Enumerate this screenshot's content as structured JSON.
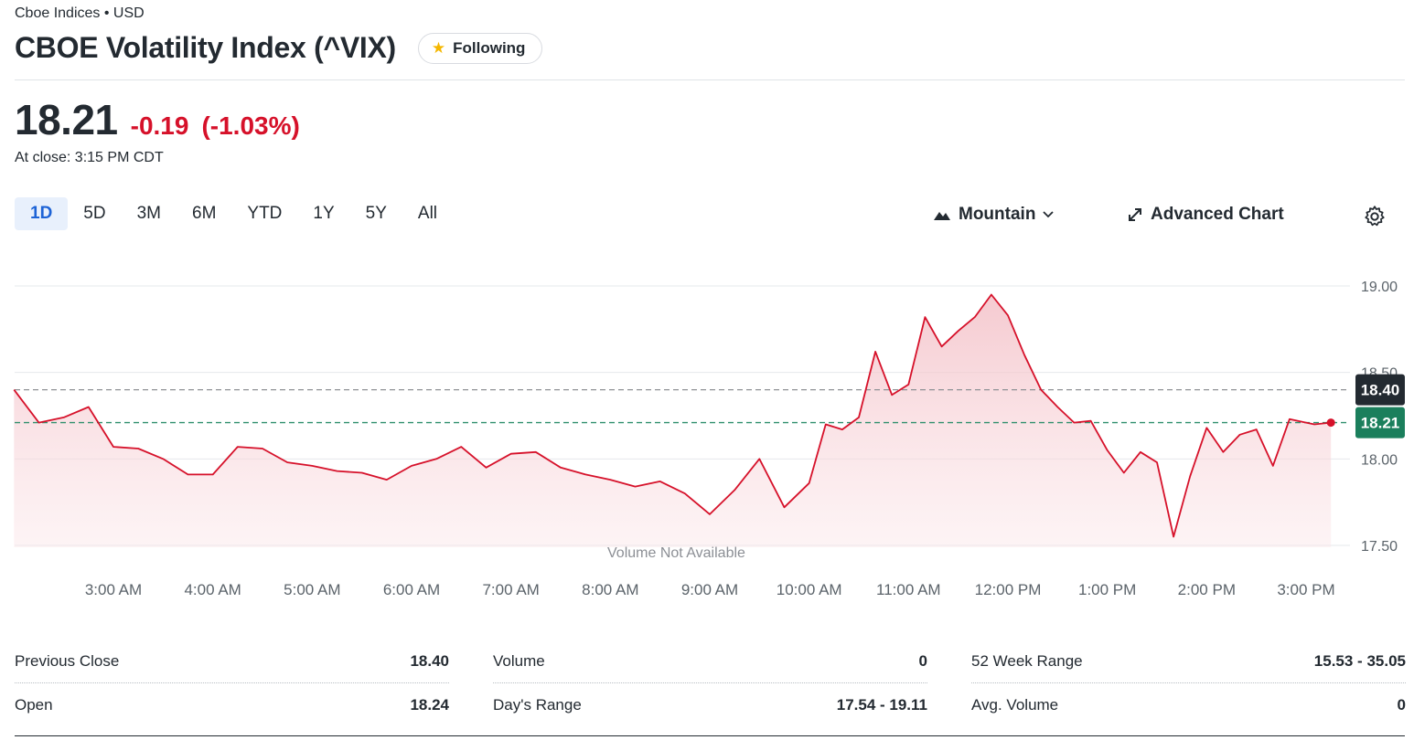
{
  "header": {
    "exchange": "Cboe Indices • USD",
    "title": "CBOE Volatility Index (^VIX)",
    "follow_label": "Following"
  },
  "quote": {
    "price": "18.21",
    "change": "-0.19",
    "change_pct": "(-1.03%)",
    "at_close": "At close: 3:15 PM CDT"
  },
  "range_tabs": [
    "1D",
    "5D",
    "3M",
    "6M",
    "YTD",
    "1Y",
    "5Y",
    "All"
  ],
  "active_range": "1D",
  "toolbar": {
    "chart_type": "Mountain",
    "advanced_chart": "Advanced Chart"
  },
  "chart_data": {
    "type": "area",
    "x_ticks": [
      "3:00 AM",
      "4:00 AM",
      "5:00 AM",
      "6:00 AM",
      "7:00 AM",
      "8:00 AM",
      "9:00 AM",
      "10:00 AM",
      "11:00 AM",
      "12:00 PM",
      "1:00 PM",
      "2:00 PM",
      "3:00 PM"
    ],
    "y_ticks": [
      "19.00",
      "18.50",
      "18.00",
      "17.50"
    ],
    "ylim": [
      17.5,
      19.0
    ],
    "previous_close_marker": "18.40",
    "last_price_marker": "18.21",
    "volume_note": "Volume Not Available",
    "series": [
      {
        "x": [
          "2:00",
          "2:15",
          "2:30",
          "2:45",
          "3:00",
          "3:15",
          "3:30",
          "3:45",
          "4:00",
          "4:15",
          "4:30",
          "4:45",
          "5:00",
          "5:15",
          "5:30",
          "5:45",
          "6:00",
          "6:15",
          "6:30",
          "6:45",
          "7:00",
          "7:15",
          "7:30",
          "7:45",
          "8:00",
          "8:15",
          "8:30",
          "8:45",
          "9:00",
          "9:15",
          "9:30",
          "9:45",
          "10:00",
          "10:10",
          "10:20",
          "10:30",
          "10:40",
          "10:50",
          "11:00",
          "11:10",
          "11:20",
          "11:30",
          "11:40",
          "11:50",
          "12:00",
          "12:10",
          "12:20",
          "12:30",
          "12:40",
          "12:50",
          "13:00",
          "13:10",
          "13:20",
          "13:30",
          "13:40",
          "13:50",
          "14:00",
          "14:10",
          "14:20",
          "14:30",
          "14:40",
          "14:50",
          "15:00",
          "15:05",
          "15:15"
        ],
        "values": [
          18.4,
          18.21,
          18.24,
          18.3,
          18.07,
          18.06,
          18.0,
          17.91,
          17.91,
          18.07,
          18.06,
          17.98,
          17.96,
          17.93,
          17.92,
          17.88,
          17.96,
          18.0,
          18.07,
          17.95,
          18.03,
          18.04,
          17.95,
          17.91,
          17.88,
          17.84,
          17.87,
          17.8,
          17.68,
          17.82,
          18.0,
          17.72,
          17.86,
          18.2,
          18.17,
          18.24,
          18.62,
          18.37,
          18.43,
          18.82,
          18.65,
          18.74,
          18.82,
          18.95,
          18.83,
          18.6,
          18.4,
          18.3,
          18.21,
          18.22,
          18.05,
          17.92,
          18.04,
          17.98,
          17.55,
          17.9,
          18.18,
          18.04,
          18.14,
          18.17,
          17.96,
          18.23,
          18.21,
          18.2,
          18.21
        ]
      }
    ]
  },
  "stats": [
    {
      "label": "Previous Close",
      "value": "18.40"
    },
    {
      "label": "Open",
      "value": "18.24"
    },
    {
      "label": "Volume",
      "value": "0"
    },
    {
      "label": "Day's Range",
      "value": "17.54 - 19.11"
    },
    {
      "label": "52 Week Range",
      "value": "15.53 - 35.05"
    },
    {
      "label": "Avg. Volume",
      "value": "0"
    }
  ]
}
